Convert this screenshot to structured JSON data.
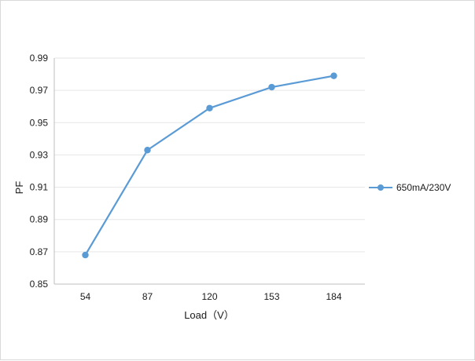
{
  "chart_data": {
    "type": "line",
    "categories": [
      "54",
      "87",
      "120",
      "153",
      "184"
    ],
    "series": [
      {
        "name": "650mA/230V",
        "values": [
          0.868,
          0.933,
          0.959,
          0.972,
          0.979
        ]
      }
    ],
    "y_ticks": [
      "0.85",
      "0.87",
      "0.89",
      "0.91",
      "0.93",
      "0.95",
      "0.97",
      "0.99"
    ],
    "ylim": [
      0.85,
      0.99
    ],
    "xlabel": "Load（V）",
    "ylabel": "PF",
    "grid": true,
    "legend_position": "right",
    "colors": {
      "series": "#5b9bd5",
      "grid": "#e6e6e6",
      "axis": "#bfbfbf"
    }
  }
}
